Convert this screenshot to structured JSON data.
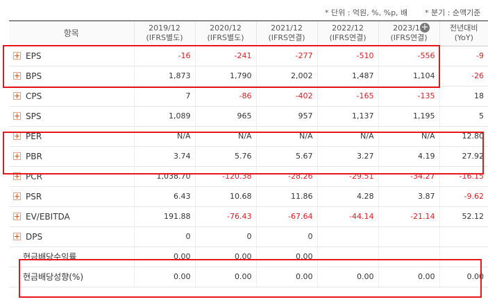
{
  "units": {
    "left": "* 단위 : 억원, %, %p, 배",
    "right": "* 분기 : 순액기준"
  },
  "header": {
    "item_label": "항목",
    "columns": [
      {
        "year": "2019/12",
        "basis": "(IFRS별도)"
      },
      {
        "year": "2020/12",
        "basis": "(IFRS별도)"
      },
      {
        "year": "2021/12",
        "basis": "(IFRS연결)"
      },
      {
        "year": "2022/12",
        "basis": "(IFRS연결)"
      },
      {
        "year": "2023/12",
        "basis": "(IFRS연결)"
      }
    ],
    "yoy_line1": "전년대비",
    "yoy_line2": "(YoY)",
    "expand_icon": "circle-plus-icon"
  },
  "rows": [
    {
      "label": "EPS",
      "expand": true,
      "values": [
        "-16",
        "-241",
        "-277",
        "-510",
        "-556",
        "-9"
      ]
    },
    {
      "label": "BPS",
      "expand": true,
      "values": [
        "1,873",
        "1,790",
        "2,002",
        "1,487",
        "1,104",
        "-26"
      ]
    },
    {
      "label": "CPS",
      "expand": true,
      "values": [
        "7",
        "-86",
        "-402",
        "-165",
        "-135",
        "18"
      ]
    },
    {
      "label": "SPS",
      "expand": true,
      "values": [
        "1,089",
        "965",
        "957",
        "1,137",
        "1,195",
        "5"
      ]
    },
    {
      "label": "PER",
      "expand": true,
      "values": [
        "N/A",
        "N/A",
        "N/A",
        "N/A",
        "N/A",
        "12.80"
      ]
    },
    {
      "label": "PBR",
      "expand": true,
      "values": [
        "3.74",
        "5.76",
        "5.67",
        "3.27",
        "4.19",
        "27.92"
      ]
    },
    {
      "label": "PCR",
      "expand": true,
      "values": [
        "1,038.70",
        "-120.38",
        "-28.26",
        "-29.51",
        "-34.27",
        "-16.15"
      ]
    },
    {
      "label": "PSR",
      "expand": true,
      "values": [
        "6.43",
        "10.68",
        "11.86",
        "4.28",
        "3.87",
        "-9.62"
      ]
    },
    {
      "label": "EV/EBITDA",
      "expand": true,
      "values": [
        "191.88",
        "-76.43",
        "-67.64",
        "-44.14",
        "-21.14",
        "52.12"
      ]
    },
    {
      "label": "DPS",
      "expand": true,
      "values": [
        "0",
        "0",
        "0",
        "",
        "",
        ""
      ]
    },
    {
      "label": "현금배당수익률",
      "expand": false,
      "values": [
        "0.00",
        "0.00",
        "0.00",
        "",
        "",
        ""
      ]
    },
    {
      "label": "현금배당성향(%)",
      "expand": false,
      "values": [
        "0.00",
        "0.00",
        "0.00",
        "0.00",
        "0.00",
        "0.00"
      ]
    }
  ],
  "colors": {
    "negative": "#e0191f",
    "highlight_box": "#e8151b"
  }
}
